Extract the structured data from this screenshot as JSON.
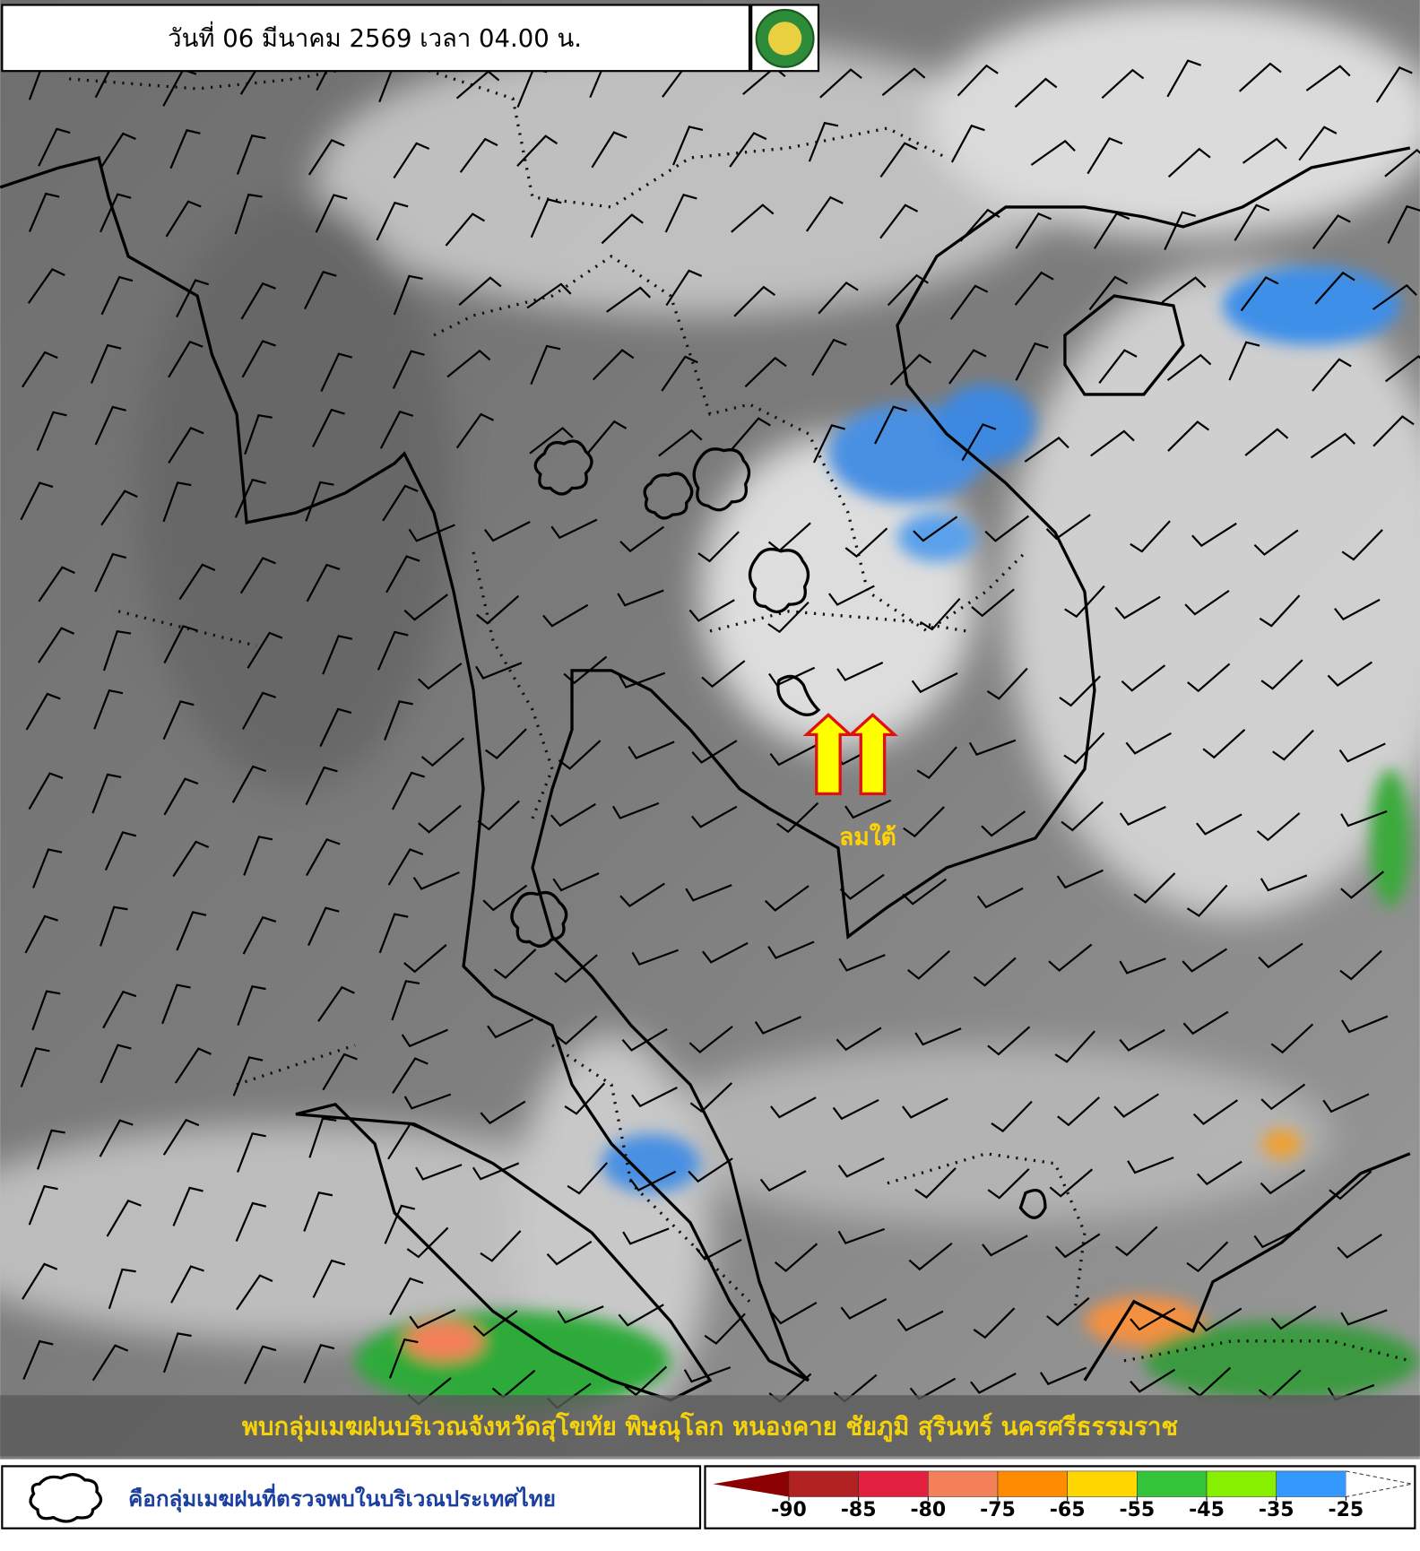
{
  "header": {
    "title": "วันที่ 06 มีนาคม 2569 เวลา 04.00 น."
  },
  "map": {
    "annotation": "ลมใต้",
    "caption": "พบกลุ่มเมฆฝนบริเวณจังหวัดสุโขทัย พิษณุโลก หนองคาย ชัยภูมิ สุรินทร์ นครศรีธรรมราช"
  },
  "legend": {
    "cloud_label": "คือกลุ่มเมฆฝนที่ตรวจพบในบริเวณประเทศไทย"
  },
  "colorbar": {
    "ticks": [
      -90,
      -85,
      -80,
      -75,
      -65,
      -55,
      -45,
      -35,
      -25
    ],
    "colors": [
      "#8b0000",
      "#b22222",
      "#e3203f",
      "#f4805a",
      "#ff8c00",
      "#ffd700",
      "#33c43a",
      "#86f000",
      "#3399ff"
    ]
  }
}
